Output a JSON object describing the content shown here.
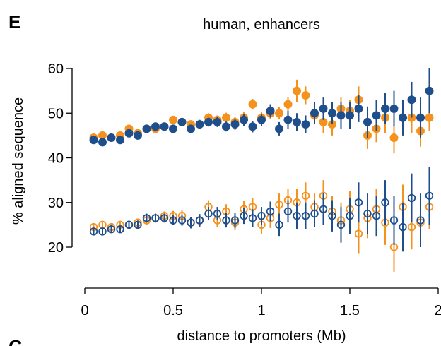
{
  "panel_letters": {
    "main": "E",
    "next": "G"
  },
  "chart_data": {
    "type": "scatter",
    "title": "human, enhancers",
    "xlabel": "distance to promoters (Mb)",
    "ylabel": "% aligned sequence",
    "xlim": [
      0,
      2
    ],
    "ylim": [
      20,
      60
    ],
    "xticks": [
      0,
      0.5,
      1,
      1.5,
      2
    ],
    "xtick_labels": [
      "0",
      "0.5",
      "1",
      "1.5",
      "2"
    ],
    "yticks": [
      20,
      30,
      40,
      50,
      60
    ],
    "ytick_labels": [
      "20",
      "30",
      "40",
      "50",
      "60"
    ],
    "grid": false,
    "legend": "none",
    "colors": {
      "blue": "#1f4e8c",
      "orange": "#f5921e"
    },
    "x": [
      0.05,
      0.1,
      0.15,
      0.2,
      0.25,
      0.3,
      0.35,
      0.4,
      0.45,
      0.5,
      0.55,
      0.6,
      0.65,
      0.7,
      0.75,
      0.8,
      0.85,
      0.9,
      0.95,
      1.0,
      1.05,
      1.1,
      1.15,
      1.2,
      1.25,
      1.3,
      1.35,
      1.4,
      1.45,
      1.5,
      1.55,
      1.6,
      1.65,
      1.7,
      1.75,
      1.8,
      1.85,
      1.9,
      1.95
    ],
    "series": [
      {
        "color": "orange",
        "marker": "filled",
        "values": [
          44.5,
          45.0,
          44.5,
          45.0,
          46.5,
          45.5,
          46.5,
          46.5,
          47.0,
          48.5,
          48.0,
          47.5,
          47.5,
          49.0,
          48.5,
          49.0,
          48.0,
          49.0,
          52.0,
          49.0,
          50.0,
          50.0,
          52.0,
          55.0,
          54.0,
          49.5,
          48.0,
          47.5,
          51.0,
          50.5,
          53.0,
          45.0,
          46.5,
          49.0,
          44.5,
          49.0,
          49.0,
          46.0,
          49.0
        ],
        "err": [
          0.6,
          0.6,
          0.6,
          0.6,
          0.6,
          0.7,
          0.7,
          0.7,
          0.8,
          0.8,
          0.9,
          0.9,
          1.0,
          1.0,
          1.0,
          1.1,
          1.1,
          1.2,
          1.2,
          1.3,
          1.3,
          1.4,
          1.6,
          2.5,
          2.0,
          2.0,
          2.5,
          2.5,
          2.5,
          2.5,
          3.0,
          3.0,
          3.0,
          3.5,
          3.5,
          3.5,
          3.5,
          3.5,
          3.0
        ]
      },
      {
        "color": "blue",
        "marker": "filled",
        "values": [
          44.0,
          43.5,
          44.5,
          44.0,
          45.5,
          45.0,
          46.5,
          47.0,
          47.0,
          46.5,
          48.0,
          46.5,
          47.5,
          48.0,
          48.0,
          47.0,
          47.5,
          48.5,
          47.0,
          48.5,
          50.5,
          46.5,
          48.5,
          48.0,
          47.5,
          50.0,
          51.0,
          50.0,
          49.5,
          49.5,
          51.0,
          48.0,
          49.5,
          51.0,
          51.0,
          49.0,
          53.0,
          49.0,
          55.0
        ],
        "err": [
          0.6,
          0.6,
          0.6,
          0.6,
          0.6,
          0.7,
          0.7,
          0.7,
          0.8,
          0.8,
          0.9,
          0.9,
          1.0,
          1.0,
          1.1,
          1.1,
          1.2,
          1.3,
          1.3,
          1.4,
          1.5,
          1.5,
          2.0,
          2.0,
          2.0,
          2.5,
          2.5,
          2.5,
          3.0,
          3.0,
          3.0,
          3.5,
          3.5,
          3.5,
          4.0,
          4.0,
          4.0,
          4.5,
          5.0
        ]
      },
      {
        "color": "orange",
        "marker": "open",
        "values": [
          24.5,
          25.0,
          24.5,
          25.0,
          25.0,
          25.5,
          26.0,
          26.5,
          27.0,
          27.0,
          27.0,
          25.5,
          26.0,
          29.0,
          26.0,
          28.0,
          25.5,
          28.5,
          29.0,
          25.0,
          26.5,
          29.5,
          30.5,
          30.0,
          31.5,
          29.0,
          31.5,
          28.0,
          26.0,
          28.5,
          23.0,
          26.5,
          28.5,
          25.5,
          20.0,
          29.0,
          24.5,
          25.5,
          29.0
        ],
        "err": [
          0.8,
          0.8,
          0.8,
          0.8,
          0.9,
          0.9,
          1.0,
          1.0,
          1.0,
          1.1,
          1.2,
          1.3,
          1.4,
          1.5,
          1.5,
          1.6,
          1.7,
          1.8,
          2.0,
          2.0,
          2.2,
          2.5,
          2.5,
          3.0,
          3.0,
          3.0,
          3.5,
          3.5,
          4.0,
          4.0,
          4.5,
          4.5,
          4.5,
          5.0,
          5.5,
          5.0,
          5.0,
          5.0,
          5.0
        ]
      },
      {
        "color": "blue",
        "marker": "open",
        "values": [
          23.5,
          23.5,
          24.0,
          24.0,
          25.0,
          25.0,
          26.5,
          26.5,
          26.5,
          26.0,
          26.0,
          25.5,
          26.0,
          27.5,
          27.5,
          26.0,
          26.0,
          27.0,
          26.5,
          27.0,
          28.0,
          25.0,
          28.0,
          27.0,
          27.0,
          27.5,
          28.5,
          27.0,
          25.0,
          27.0,
          30.0,
          27.5,
          27.0,
          30.0,
          26.0,
          24.5,
          31.0,
          26.0,
          31.5
        ],
        "err": [
          0.8,
          0.8,
          0.8,
          0.8,
          0.9,
          0.9,
          1.0,
          1.0,
          1.0,
          1.1,
          1.2,
          1.3,
          1.4,
          1.5,
          1.5,
          1.6,
          1.7,
          1.8,
          2.0,
          2.0,
          2.2,
          2.5,
          2.5,
          3.0,
          3.0,
          3.0,
          3.5,
          3.5,
          4.0,
          4.0,
          4.5,
          4.5,
          4.5,
          5.0,
          5.5,
          5.5,
          5.5,
          6.0,
          6.5
        ]
      }
    ]
  }
}
